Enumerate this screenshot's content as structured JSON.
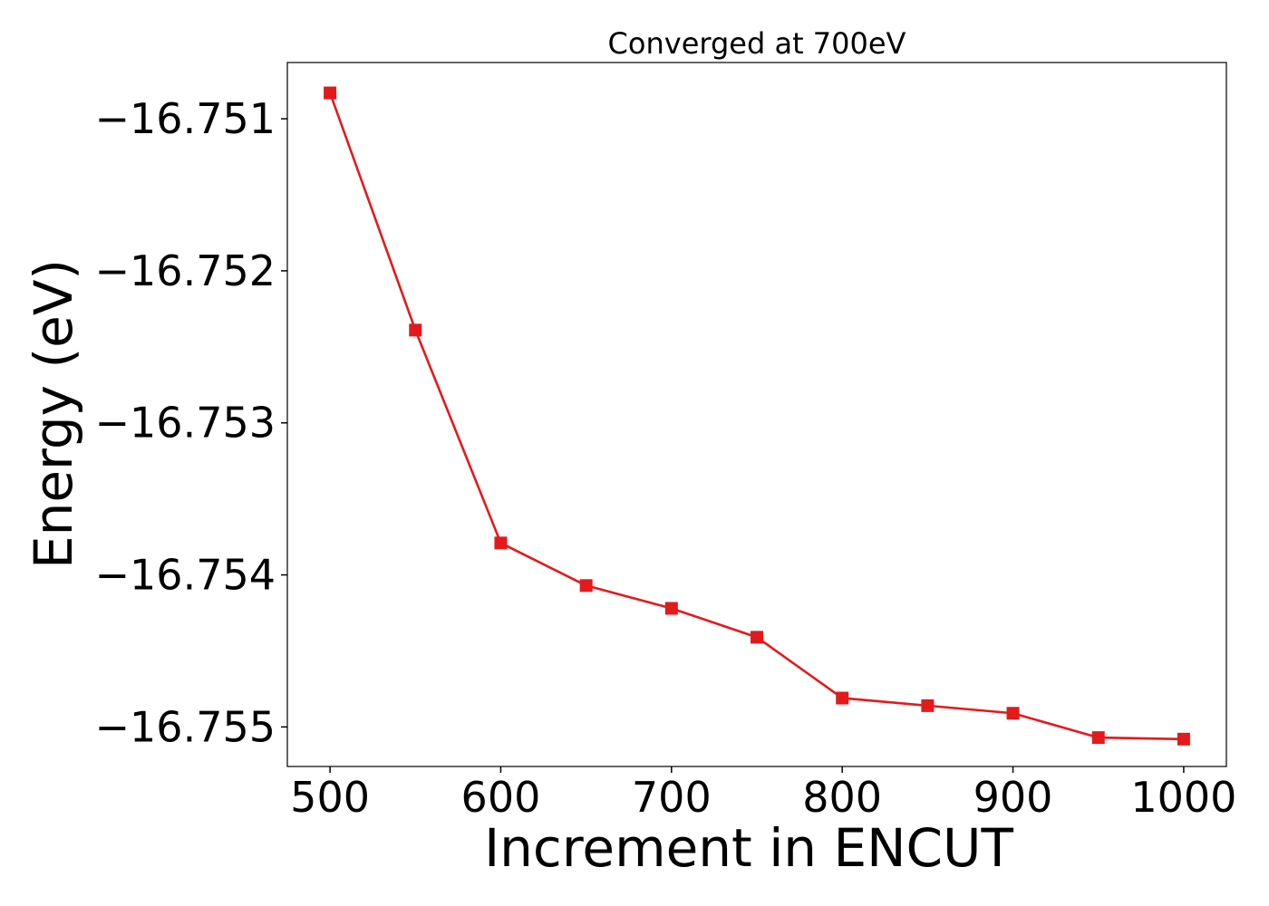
{
  "chart_data": {
    "type": "line",
    "title": "Converged at 700eV",
    "xlabel": "Increment in ENCUT",
    "ylabel": "Energy (eV)",
    "xlim": [
      475,
      1025
    ],
    "ylim": [
      -16.75526,
      -16.75063
    ],
    "x_ticks": [
      500,
      600,
      700,
      800,
      900,
      1000
    ],
    "x_tick_labels": [
      "500",
      "600",
      "700",
      "800",
      "900",
      "1000"
    ],
    "y_ticks": [
      -16.751,
      -16.752,
      -16.753,
      -16.754,
      -16.755
    ],
    "y_tick_labels": [
      "−16.751",
      "−16.752",
      "−16.753",
      "−16.754",
      "−16.755"
    ],
    "grid": false,
    "series": [
      {
        "color": "#e31a1c",
        "marker": "square",
        "x": [
          500,
          550,
          600,
          650,
          700,
          750,
          800,
          850,
          900,
          950,
          1000
        ],
        "y": [
          -16.75083,
          -16.75239,
          -16.75379,
          -16.75407,
          -16.75422,
          -16.75441,
          -16.75481,
          -16.75486,
          -16.75491,
          -16.75507,
          -16.75508
        ]
      }
    ]
  }
}
